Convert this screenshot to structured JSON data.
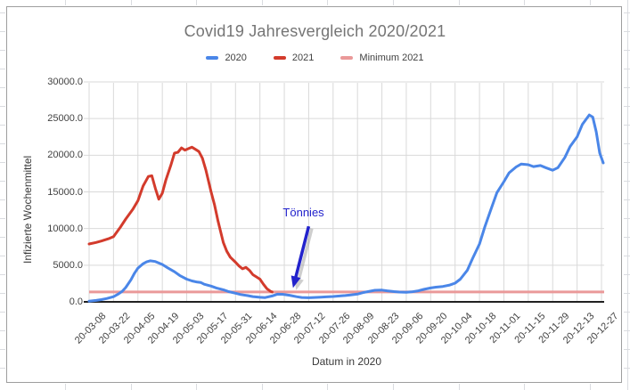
{
  "sheet": {
    "gridline_color": "#dadce0"
  },
  "chart": {
    "border_color": "#9e9e9e",
    "background": "#ffffff",
    "title_color": "#757575",
    "text_color": "#424242",
    "grid_color": "#d9d9d9",
    "axis_color": "#212121"
  },
  "chart_data": {
    "type": "line",
    "title": "Covid19 Jahresvergleich 2020/2021",
    "xlabel": "Datum in 2020",
    "ylabel": "Infizierte Wochenmittel",
    "ylim": [
      0,
      30000
    ],
    "grid": true,
    "legend_position": "top",
    "legend": [
      {
        "label": "2020",
        "color": "#4a86e8"
      },
      {
        "label": "2021",
        "color": "#d33b2c"
      },
      {
        "label": "Minimum 2021",
        "color": "#ea9999"
      }
    ],
    "y_ticks": {
      "values": [
        0,
        5000,
        10000,
        15000,
        20000,
        25000,
        30000
      ],
      "labels": [
        "0.0",
        "5000.0",
        "10000.0",
        "15000.0",
        "20000.0",
        "25000.0",
        "30000.0"
      ]
    },
    "x_ticks": [
      "20-03-08",
      "20-03-22",
      "20-04-05",
      "20-04-19",
      "20-05-03",
      "20-05-17",
      "20-05-31",
      "20-06-14",
      "20-06-28",
      "20-07-12",
      "20-07-26",
      "20-08-09",
      "20-08-23",
      "20-09-06",
      "20-09-20",
      "20-10-04",
      "20-10-18",
      "20-11-01",
      "20-11-15",
      "20-11-29",
      "20-12-13",
      "20-12-27"
    ],
    "series": [
      {
        "name": "2020",
        "color": "#4a86e8",
        "points": [
          [
            "03-08",
            100
          ],
          [
            "03-12",
            200
          ],
          [
            "03-15",
            300
          ],
          [
            "03-18",
            450
          ],
          [
            "03-22",
            700
          ],
          [
            "03-25",
            1100
          ],
          [
            "03-27",
            1450
          ],
          [
            "03-29",
            1950
          ],
          [
            "04-01",
            3000
          ],
          [
            "04-03",
            3900
          ],
          [
            "04-05",
            4600
          ],
          [
            "04-08",
            5200
          ],
          [
            "04-10",
            5450
          ],
          [
            "04-12",
            5600
          ],
          [
            "04-15",
            5500
          ],
          [
            "04-19",
            5100
          ],
          [
            "04-22",
            4650
          ],
          [
            "04-26",
            4100
          ],
          [
            "04-29",
            3600
          ],
          [
            "05-03",
            3100
          ],
          [
            "05-06",
            2850
          ],
          [
            "05-09",
            2700
          ],
          [
            "05-11",
            2650
          ],
          [
            "05-13",
            2400
          ],
          [
            "05-17",
            2150
          ],
          [
            "05-20",
            1900
          ],
          [
            "05-24",
            1650
          ],
          [
            "05-27",
            1400
          ],
          [
            "05-31",
            1180
          ],
          [
            "06-03",
            1000
          ],
          [
            "06-07",
            850
          ],
          [
            "06-10",
            720
          ],
          [
            "06-14",
            620
          ],
          [
            "06-17",
            580
          ],
          [
            "06-21",
            800
          ],
          [
            "06-24",
            1050
          ],
          [
            "06-27",
            1030
          ],
          [
            "07-01",
            900
          ],
          [
            "07-05",
            700
          ],
          [
            "07-08",
            600
          ],
          [
            "07-12",
            560
          ],
          [
            "07-15",
            600
          ],
          [
            "07-19",
            640
          ],
          [
            "07-22",
            680
          ],
          [
            "07-26",
            730
          ],
          [
            "07-29",
            790
          ],
          [
            "08-02",
            860
          ],
          [
            "08-05",
            950
          ],
          [
            "08-09",
            1060
          ],
          [
            "08-12",
            1250
          ],
          [
            "08-16",
            1450
          ],
          [
            "08-19",
            1580
          ],
          [
            "08-23",
            1600
          ],
          [
            "08-26",
            1500
          ],
          [
            "08-30",
            1400
          ],
          [
            "09-02",
            1340
          ],
          [
            "09-06",
            1300
          ],
          [
            "09-09",
            1360
          ],
          [
            "09-13",
            1500
          ],
          [
            "09-16",
            1700
          ],
          [
            "09-20",
            1900
          ],
          [
            "09-23",
            2000
          ],
          [
            "09-27",
            2100
          ],
          [
            "10-01",
            2300
          ],
          [
            "10-04",
            2550
          ],
          [
            "10-07",
            3100
          ],
          [
            "10-11",
            4300
          ],
          [
            "10-14",
            5900
          ],
          [
            "10-18",
            7900
          ],
          [
            "10-21",
            10200
          ],
          [
            "10-25",
            12900
          ],
          [
            "10-28",
            14900
          ],
          [
            "11-01",
            16400
          ],
          [
            "11-04",
            17600
          ],
          [
            "11-08",
            18400
          ],
          [
            "11-11",
            18800
          ],
          [
            "11-15",
            18700
          ],
          [
            "11-18",
            18450
          ],
          [
            "11-22",
            18600
          ],
          [
            "11-25",
            18300
          ],
          [
            "11-29",
            17950
          ],
          [
            "12-02",
            18300
          ],
          [
            "12-06",
            19700
          ],
          [
            "12-09",
            21200
          ],
          [
            "12-13",
            22500
          ],
          [
            "12-16",
            24200
          ],
          [
            "12-20",
            25500
          ],
          [
            "12-22",
            25200
          ],
          [
            "12-24",
            23200
          ],
          [
            "12-26",
            20300
          ],
          [
            "12-28",
            18950
          ]
        ]
      },
      {
        "name": "2021",
        "color": "#d33b2c",
        "points": [
          [
            "03-08",
            7900
          ],
          [
            "03-12",
            8100
          ],
          [
            "03-15",
            8300
          ],
          [
            "03-19",
            8600
          ],
          [
            "03-22",
            8900
          ],
          [
            "03-26",
            10200
          ],
          [
            "03-29",
            11300
          ],
          [
            "04-02",
            12600
          ],
          [
            "04-05",
            13800
          ],
          [
            "04-08",
            15800
          ],
          [
            "04-11",
            17100
          ],
          [
            "04-13",
            17200
          ],
          [
            "04-15",
            15500
          ],
          [
            "04-17",
            14000
          ],
          [
            "04-19",
            14800
          ],
          [
            "04-21",
            16600
          ],
          [
            "04-24",
            18700
          ],
          [
            "04-26",
            20300
          ],
          [
            "04-28",
            20400
          ],
          [
            "04-30",
            21000
          ],
          [
            "05-02",
            20700
          ],
          [
            "05-04",
            20900
          ],
          [
            "05-06",
            21100
          ],
          [
            "05-08",
            20800
          ],
          [
            "05-10",
            20500
          ],
          [
            "05-12",
            19600
          ],
          [
            "05-14",
            18000
          ],
          [
            "05-17",
            15000
          ],
          [
            "05-19",
            13200
          ],
          [
            "05-21",
            11000
          ],
          [
            "05-24",
            8100
          ],
          [
            "05-26",
            6900
          ],
          [
            "05-28",
            6100
          ],
          [
            "05-31",
            5400
          ],
          [
            "06-02",
            4900
          ],
          [
            "06-04",
            4500
          ],
          [
            "06-06",
            4700
          ],
          [
            "06-08",
            4300
          ],
          [
            "06-10",
            3700
          ],
          [
            "06-12",
            3400
          ],
          [
            "06-14",
            3100
          ],
          [
            "06-16",
            2400
          ],
          [
            "06-18",
            1800
          ],
          [
            "06-20",
            1450
          ],
          [
            "06-21",
            1350
          ]
        ]
      },
      {
        "name": "Minimum 2021",
        "color": "#ea9999",
        "type": "hline",
        "value": 1350
      }
    ],
    "annotation": {
      "text": "Tönnies",
      "color": "#2222cc",
      "arrow_tip": [
        "07-03",
        1900
      ],
      "arrow_tail": [
        "07-12",
        10300
      ],
      "label_pos": [
        "07-09",
        12200
      ]
    }
  }
}
